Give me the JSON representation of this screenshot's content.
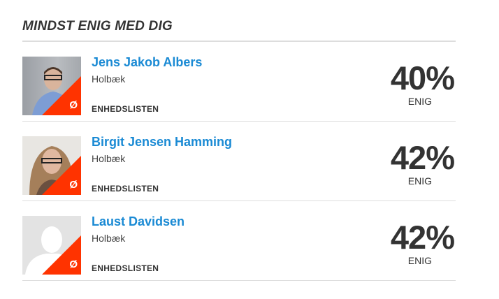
{
  "section_title": "MINDST ENIG MED DIG",
  "candidates": [
    {
      "name": "Jens Jakob Albers",
      "city": "Holbæk",
      "party": "ENHEDSLISTEN",
      "party_letter": "Ø",
      "percent": "40%",
      "agree_label": "ENIG"
    },
    {
      "name": "Birgit Jensen Hamming",
      "city": "Holbæk",
      "party": "ENHEDSLISTEN",
      "party_letter": "Ø",
      "percent": "42%",
      "agree_label": "ENIG"
    },
    {
      "name": "Laust Davidsen",
      "city": "Holbæk",
      "party": "ENHEDSLISTEN",
      "party_letter": "Ø",
      "percent": "42%",
      "agree_label": "ENIG"
    }
  ],
  "colors": {
    "name": "#1a8ad4",
    "party_badge": "#ff3300"
  }
}
